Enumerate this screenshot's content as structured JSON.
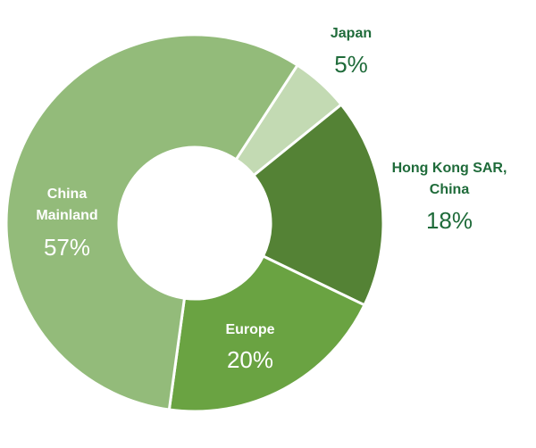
{
  "chart_data": {
    "type": "donut",
    "categories": [
      "Japan",
      "Hong Kong SAR, China",
      "Europe",
      "China Mainland"
    ],
    "values": [
      5,
      18,
      20,
      57
    ],
    "value_labels": [
      "5%",
      "18%",
      "20%",
      "57%"
    ],
    "colors": [
      "#c3dab3",
      "#548235",
      "#6aa342",
      "#93bb7a"
    ]
  }
}
